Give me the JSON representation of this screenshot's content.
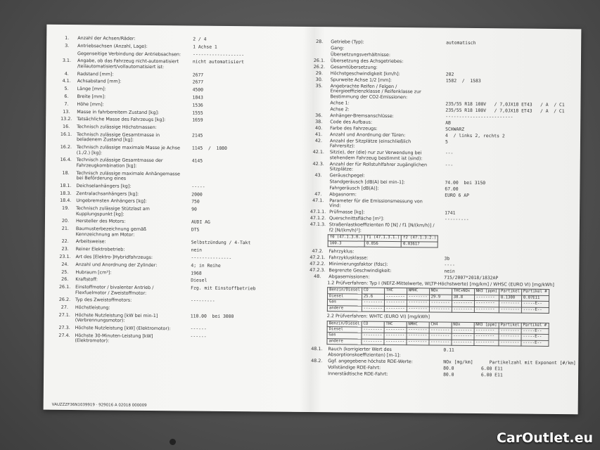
{
  "left": {
    "rows": [
      {
        "n": "1.",
        "l": "Anzahl der Achsen/Räder:",
        "v": "2 / 4"
      },
      {
        "n": "3.",
        "l": "Antriebsachsen (Anzahl, Lage):",
        "v": "1 Achse 1"
      },
      {
        "l": "Gegenseitige Verbindung der Antriebsachsen:",
        "v": "-------------------"
      },
      {
        "n": "3.1.",
        "l": "Angabe, ob das Fahrzeug nicht-automatisiert /teilautomatisiert/vollautomatisiert ist:",
        "v": "nicht automatisiert"
      },
      {
        "n": "4.",
        "l": "Radstand [mm]:",
        "v": "2677"
      },
      {
        "n": "4.1.",
        "l": "Achsabstand [mm]:",
        "v": "2677"
      },
      {
        "n": "5.",
        "l": "Länge [mm]:",
        "v": "4500"
      },
      {
        "n": "6.",
        "l": "Breite [mm]:",
        "v": "1843"
      },
      {
        "n": "7.",
        "l": "Höhe [mm]:",
        "v": "1536"
      },
      {
        "n": "13.",
        "l": "Masse in fahrbereitem Zustand [kg]:",
        "v": "1555"
      },
      {
        "n": "13.2.",
        "l": "Tatsächliche Masse des Fahrzeugs [kg]:",
        "v": "1659"
      },
      {
        "n": "16.",
        "l": "Technisch zulässige Höchstmassen:"
      },
      {
        "n": "16.1.",
        "l": "Technisch zulässige Gesamtmasse in beladenem Zustand [kg]:",
        "v": "2145"
      },
      {
        "n": "16.2.",
        "l": "Technisch zulässige maximale Masse je Achse (1./2.) [kg]:",
        "v": "1145  /  1080"
      },
      {
        "n": "16.4.",
        "l": "Technisch zulässige Gesamtmasse der Fahrzeugkombination [kg]:",
        "v": "4145"
      },
      {
        "n": "18.",
        "l": "Technisch zulässige maximale Anhängemasse bei Beförderung eines"
      },
      {
        "n": "18.1.",
        "l": "Deichselanhängers [kg]:",
        "v": "-----"
      },
      {
        "n": "18.3.",
        "l": "Zentralachsanhängers [kg]:",
        "v": "2000"
      },
      {
        "n": "18.4.",
        "l": "Ungebremsten Anhängers [kg]:",
        "v": "750"
      },
      {
        "n": "19.",
        "l": "Technisch zulässige Stützlast am Kupplungspunkt [kg]:",
        "v": "90"
      },
      {
        "n": "20.",
        "l": "Hersteller des Motors:",
        "v": "AUDI AG"
      },
      {
        "n": "21.",
        "l": "Baumusterbezeichnung gemäß Kennzeichnung am Motor:",
        "v": "DTS"
      },
      {
        "n": "22.",
        "l": "Arbeitsweise:",
        "v": "Selbstzündung / 4-Takt"
      },
      {
        "n": "23.",
        "l": "Reiner Elektrobetrieb:",
        "v": "nein"
      },
      {
        "n": "23.1.",
        "l": "Art des [Elektro-]Hybridfahrzeugs:",
        "v": "---------------"
      },
      {
        "n": "24.",
        "l": "Anzahl und Anordnung der Zylinder:",
        "v": "4; in Reihe"
      },
      {
        "n": "25.",
        "l": "Hubraum [cm³]:",
        "v": "1968"
      },
      {
        "n": "26.",
        "l": "Kraftstoff:",
        "v": "Diesel"
      },
      {
        "n": "26.1.",
        "l": "Einstoffmotor / bivalenter Antrieb / Flexfuelmotor / Zweistoffmotor:",
        "v": "Fzg. mit Einstoffbetrieb"
      },
      {
        "n": "26.2.",
        "l": "Typ des Zweistoffmotors:",
        "v": "---------"
      },
      {
        "n": "27.",
        "l": "Höchstleistung:"
      },
      {
        "n": "27.1.",
        "l": "Höchste Nutzleistung [kW bei min-1] (Verbrennungsmotor):",
        "v": "110.00  bei 3000"
      },
      {
        "n": "27.3.",
        "l": "Höchste Nutzleistung [kW] (Elektromotor):",
        "v": "------"
      },
      {
        "n": "27.4.",
        "l": "Höchste 30-Minuten-Leistung [kW] (Elektromotor):",
        "v": "------"
      }
    ],
    "footer": "VAUZZZF36N1039919 · 929016 A 02018     000009"
  },
  "right": {
    "rows": [
      {
        "n": "28.",
        "l": "Getriebe (Typ):",
        "v": "automatisch"
      },
      {
        "l": "Gang:"
      },
      {
        "l": "Übersetzungsverhältnisse:"
      },
      {
        "n": "26.1.",
        "l": "Übersetzung des Achsgetriebes:"
      },
      {
        "n": "26.2.",
        "l": "Gesamtübersetzung:"
      },
      {
        "n": "29.",
        "l": "Höchstgeschwindigkeit [km/h]:",
        "v": "202"
      },
      {
        "n": "30.",
        "l": "Spurweite Achse 1/2 [mm]:",
        "v": "1582  /  1583"
      },
      {
        "n": "35.",
        "l": "Angebrachte Reifen / Felgen / Energieeffizienzklasse / Reifenklasse zur Bestimmung der CO2-Emissionen:"
      },
      {
        "l": "Achse 1:",
        "v": "235/55 R18 100V   / 7,0JX18 ET43   / A  / C1"
      },
      {
        "l": "Achse 2:",
        "v": "235/55 R18 100V   / 7,0JX18 ET43   / A  / C1"
      },
      {
        "n": "36.",
        "l": "Anhänger-Bremsanschlüsse:",
        "v": "-------------------------"
      },
      {
        "n": "38.",
        "l": "Code des Aufbaus:",
        "v": "AB"
      },
      {
        "n": "40.",
        "l": "Farbe des Fahrzeugs:",
        "v": "SCHWARZ"
      },
      {
        "n": "41.",
        "l": "Anzahl und Anordnung der Türen:",
        "v": "4  / links 2, rechts 2"
      },
      {
        "n": "42.",
        "l": "Anzahl der Sitzplätze (einschließlich Fahrersitz):",
        "v": "5"
      },
      {
        "n": "42.1.",
        "l": "Sitz(e), der (die) nur zur Verwendung bei stehendem Fahrzeug bestimmt ist (sind):",
        "v": "---"
      },
      {
        "n": "42.3.",
        "l": "Anzahl der für Rollstuhlfahrer zugänglichen Sitzplätze:",
        "v": "---"
      },
      {
        "n": "43.",
        "l": "Geräuschpegel:"
      },
      {
        "l": "Standgeräusch [dB(A) bei min-1]:",
        "v": "74.00  bei 3150"
      },
      {
        "l": "Fahrgeräusch [dB(A)]:",
        "v": "67.00"
      },
      {
        "n": "47.",
        "l": "Abgasnorm:",
        "v": "EURO 6 AP"
      },
      {
        "n": "47.1.",
        "l": "Parameter für die Emissionsmessung von Vind:"
      },
      {
        "n": "47.1.1.",
        "l": "Prüfmasse [kg]:",
        "v": "1741"
      },
      {
        "n": "47.1.2.",
        "l": "Querschnittsfläche [m²]:",
        "v": "---------"
      },
      {
        "n": "47.1.3.",
        "l": "Straßenlastkoeffizienten f0 [N] / f1 [N/(km/h)] / f2 [N/(km/h)²]:"
      }
    ],
    "road_load": {
      "header": [
        "f0 (47.1.3.0.)",
        "f1 (47.1.3.1.)",
        "f2 (47.1.3.2.)"
      ],
      "values": [
        "100.3",
        "0.856",
        "0.03617"
      ]
    },
    "rows2": [
      {
        "n": "47.2.",
        "l": "Fahrzyklus:"
      },
      {
        "n": "47.2.1.",
        "l": "Fahrzyklusklasse:",
        "v": "3b"
      },
      {
        "n": "47.2.2.",
        "l": "Minimierungsfaktor (fdsc):",
        "v": "----"
      },
      {
        "n": "47.2.3.",
        "l": "Begrenzte Geschwindigkeit:",
        "v": "nein"
      },
      {
        "n": "48.",
        "l": "Abgasemissionen:",
        "v": "715/2007*2018/1832AP"
      }
    ],
    "table1": {
      "title": "1.2 Prüfverfahren: Typ I (NEFZ-Mittelwerte, WLTP-Höchstwerte) [mg/km] / WHSC (EURO VI) [mg/kWh]",
      "header": [
        "Benzin/Diesel",
        "CO",
        "THC",
        "NMHC",
        "NOx",
        "THC+NOx",
        "NH3 [ppm]",
        "Partikel",
        "Partikel #"
      ],
      "rows": [
        [
          "Diesel",
          "25.6",
          "--------",
          "--------",
          "29.9",
          "38.8",
          "--------",
          "0.1300",
          "0.07E11"
        ],
        [
          "Gas",
          "--------",
          "--------",
          "--------",
          "--------",
          "--------",
          "--------",
          "--------",
          "-----E--"
        ],
        [
          "andere",
          "--------",
          "--------",
          "--------",
          "--------",
          "--------",
          "--------",
          "--------",
          "-----E--"
        ]
      ]
    },
    "table2": {
      "title": "2.2 Prüfverfahren: WHTC (EURO VI) [mg/kWh]",
      "header": [
        "Benzin/Diesel",
        "CO",
        "THC",
        "NMHC",
        "CH4",
        "NOx",
        "NH3 [ppm]",
        "Partikel",
        "Partikel #"
      ],
      "rows": [
        [
          "Diesel",
          "--------",
          "--------",
          "--------",
          "--------",
          "--------",
          "--------",
          "--------",
          "-----E--"
        ],
        [
          "Gas",
          "--------",
          "--------",
          "--------",
          "--------",
          "--------",
          "--------",
          "--------",
          "-----E--"
        ],
        [
          "andere",
          "--------",
          "--------",
          "--------",
          "--------",
          "--------",
          "--------",
          "--------",
          "-----E--"
        ]
      ]
    },
    "rows3": [
      {
        "n": "48.1.",
        "l": "Rauch (korrigierter Wert des Absorptionskoeffizienten) [m-1]:",
        "v": "0.11"
      },
      {
        "n": "48.2.",
        "l": "Ggf. angegebene höchste RDE-Werte:",
        "v": "NOx [mg/km]      Partikelzahl mit Exponent [#/km]"
      },
      {
        "l": "Vollständige RDE-Fahrt:",
        "v": "80.0          6.00 E11"
      },
      {
        "l": "Innerstädtische RDE-Fahrt:",
        "v": "80.0          6.00 E11"
      }
    ]
  },
  "watermark": "CarOutlet.eu"
}
